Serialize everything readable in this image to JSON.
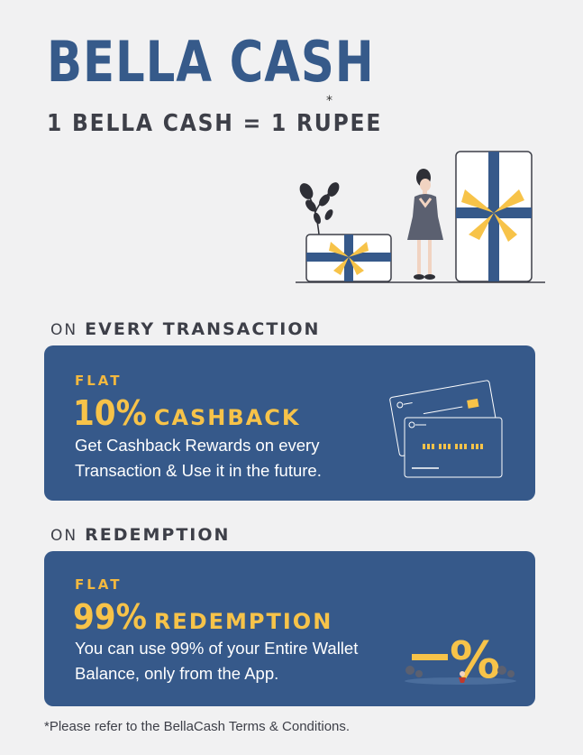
{
  "header": {
    "title": "BELLA CASH",
    "asterisk": "*",
    "subtitle": "1 BELLA CASH = 1 RUPEE"
  },
  "sections": [
    {
      "label_prefix": "ON",
      "label_main": "EVERY TRANSACTION",
      "flat": "FLAT",
      "percent": "10%",
      "word": "CASHBACK",
      "description": "Get Cashback Rewards on every Transaction & Use it in the future.",
      "icon": "credit-cards-icon"
    },
    {
      "label_prefix": "ON",
      "label_main": "REDEMPTION",
      "flat": "FLAT",
      "percent": "99%",
      "word": "REDEMPTION",
      "description": "You can use 99% of your Entire Wallet Balance, only from the App.",
      "icon": "percent-discount-icon"
    }
  ],
  "footnote": "*Please refer to the BellaCash Terms & Conditions.",
  "colors": {
    "background": "#f1f1f2",
    "brand_blue": "#36598a",
    "accent_yellow": "#f7c349",
    "text_dark": "#3d3f48"
  }
}
